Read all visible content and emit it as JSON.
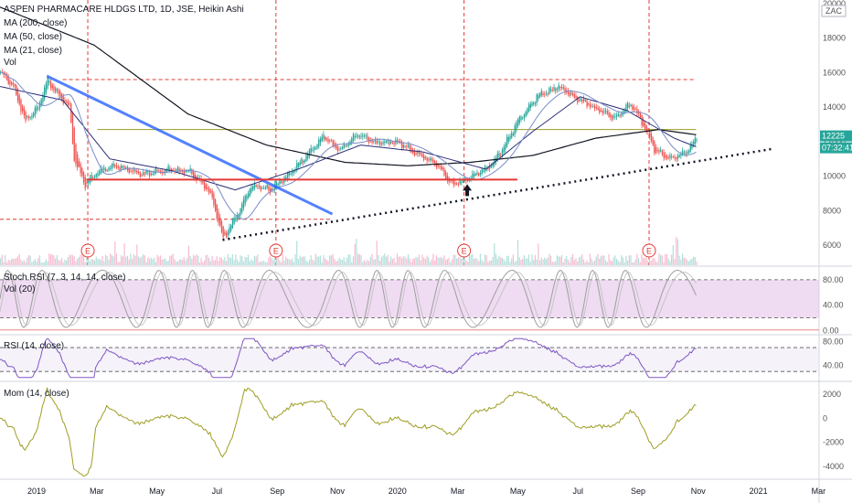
{
  "header": {
    "title": "ASPEN PHARMACARE HLDGS LTD, 1D, JSE, Heikin Ashi",
    "indicators": [
      "MA (200, close)",
      "MA (50, close)",
      "MA (21, close)",
      "Vol"
    ]
  },
  "colors": {
    "up": "#26a69a",
    "down": "#ef5350",
    "ma200": "#131722",
    "ma50": "#2b2f77",
    "ma21": "#7b8cc8",
    "trend_blue": "#2962ff",
    "support_red": "#e53935",
    "stoch_fill": "#e1bee7",
    "mom": "#9e9d24",
    "grid_dash": "#e53935"
  },
  "x_axis": {
    "labels": [
      "2019",
      "Mar",
      "May",
      "Jul",
      "Sep",
      "Nov",
      "2020",
      "Mar",
      "May",
      "Jul",
      "Sep",
      "Nov",
      "2021",
      "Mar"
    ],
    "positions_index": [
      0,
      40,
      80,
      120,
      160,
      200,
      240,
      280,
      320,
      360,
      400,
      440,
      480,
      520
    ]
  },
  "badge_event": "E",
  "chart_data": [
    {
      "type": "candlestick",
      "name": "price",
      "y_ticks": [
        "20000",
        "18000",
        "16000",
        "14000",
        "12000",
        "10000",
        "8000",
        "6000"
      ],
      "ylim": [
        5200,
        20200
      ],
      "currency": "ZAC",
      "last_price": "12225",
      "countdown": "07:32:41",
      "horizontal_levels": [
        15600,
        12700,
        9800,
        7500
      ],
      "keypoints": [
        {
          "d": 0,
          "v": 16000
        },
        {
          "d": 8,
          "v": 15200
        },
        {
          "d": 16,
          "v": 13200
        },
        {
          "d": 24,
          "v": 14000
        },
        {
          "d": 30,
          "v": 15600
        },
        {
          "d": 36,
          "v": 14800
        },
        {
          "d": 44,
          "v": 14000
        },
        {
          "d": 47,
          "v": 11000
        },
        {
          "d": 54,
          "v": 9500
        },
        {
          "d": 62,
          "v": 10300
        },
        {
          "d": 74,
          "v": 10600
        },
        {
          "d": 90,
          "v": 10100
        },
        {
          "d": 110,
          "v": 10400
        },
        {
          "d": 122,
          "v": 10200
        },
        {
          "d": 134,
          "v": 9000
        },
        {
          "d": 142,
          "v": 6400
        },
        {
          "d": 150,
          "v": 7600
        },
        {
          "d": 160,
          "v": 9500
        },
        {
          "d": 172,
          "v": 9200
        },
        {
          "d": 184,
          "v": 10100
        },
        {
          "d": 196,
          "v": 11300
        },
        {
          "d": 206,
          "v": 12300
        },
        {
          "d": 216,
          "v": 11500
        },
        {
          "d": 228,
          "v": 12400
        },
        {
          "d": 240,
          "v": 11900
        },
        {
          "d": 252,
          "v": 12000
        },
        {
          "d": 266,
          "v": 11300
        },
        {
          "d": 278,
          "v": 10700
        },
        {
          "d": 288,
          "v": 9500
        },
        {
          "d": 298,
          "v": 9800
        },
        {
          "d": 312,
          "v": 10600
        },
        {
          "d": 320,
          "v": 11500
        },
        {
          "d": 330,
          "v": 13200
        },
        {
          "d": 342,
          "v": 14600
        },
        {
          "d": 356,
          "v": 15200
        },
        {
          "d": 366,
          "v": 14600
        },
        {
          "d": 380,
          "v": 13900
        },
        {
          "d": 392,
          "v": 13400
        },
        {
          "d": 402,
          "v": 14200
        },
        {
          "d": 410,
          "v": 13000
        },
        {
          "d": 418,
          "v": 11400
        },
        {
          "d": 428,
          "v": 11000
        },
        {
          "d": 438,
          "v": 11400
        },
        {
          "d": 444,
          "v": 12225
        }
      ],
      "ma200_points": [
        {
          "d": 0,
          "v": 19800
        },
        {
          "d": 60,
          "v": 17600
        },
        {
          "d": 120,
          "v": 13600
        },
        {
          "d": 170,
          "v": 11800
        },
        {
          "d": 220,
          "v": 10800
        },
        {
          "d": 260,
          "v": 10600
        },
        {
          "d": 300,
          "v": 10800
        },
        {
          "d": 340,
          "v": 11200
        },
        {
          "d": 380,
          "v": 12200
        },
        {
          "d": 420,
          "v": 12700
        },
        {
          "d": 444,
          "v": 12400
        }
      ],
      "ma50_points": [
        {
          "d": 0,
          "v": 15200
        },
        {
          "d": 40,
          "v": 14400
        },
        {
          "d": 70,
          "v": 11000
        },
        {
          "d": 110,
          "v": 10300
        },
        {
          "d": 150,
          "v": 9200
        },
        {
          "d": 190,
          "v": 10400
        },
        {
          "d": 230,
          "v": 11800
        },
        {
          "d": 270,
          "v": 11400
        },
        {
          "d": 310,
          "v": 10400
        },
        {
          "d": 340,
          "v": 12600
        },
        {
          "d": 370,
          "v": 14600
        },
        {
          "d": 400,
          "v": 13800
        },
        {
          "d": 430,
          "v": 12200
        },
        {
          "d": 444,
          "v": 11700
        }
      ],
      "trend_blue": [
        {
          "d": 30,
          "v": 15800
        },
        {
          "d": 212,
          "v": 7800
        }
      ],
      "support_red": [
        {
          "d": 55,
          "v": 9800
        },
        {
          "d": 330,
          "v": 9800
        }
      ],
      "trend_dotted": [
        {
          "d": 142,
          "v": 6300
        },
        {
          "d": 494,
          "v": 11600
        }
      ],
      "arrow_at": {
        "d": 298,
        "v": 9000
      },
      "earnings_index": [
        56,
        176,
        296,
        414
      ],
      "vertical_markers": [
        56,
        176,
        296,
        414
      ]
    },
    {
      "type": "line",
      "name": "Stoch RSI (7, 3, 14, 14, close)",
      "second_label": "Vol (20)",
      "y_ticks": [
        "80.00",
        "40.00",
        "0.00"
      ],
      "ylim": [
        -5,
        100
      ],
      "bands": [
        20,
        80
      ]
    },
    {
      "type": "line",
      "name": "RSI (14, close)",
      "y_ticks": [
        "80.00",
        "40.00"
      ],
      "ylim": [
        15,
        90
      ],
      "bands": [
        30,
        70
      ]
    },
    {
      "type": "line",
      "name": "Mom (14, close)",
      "y_ticks": [
        "2000",
        "0",
        "-2000",
        "-4000"
      ],
      "ylim": [
        -5000,
        3000
      ]
    }
  ]
}
